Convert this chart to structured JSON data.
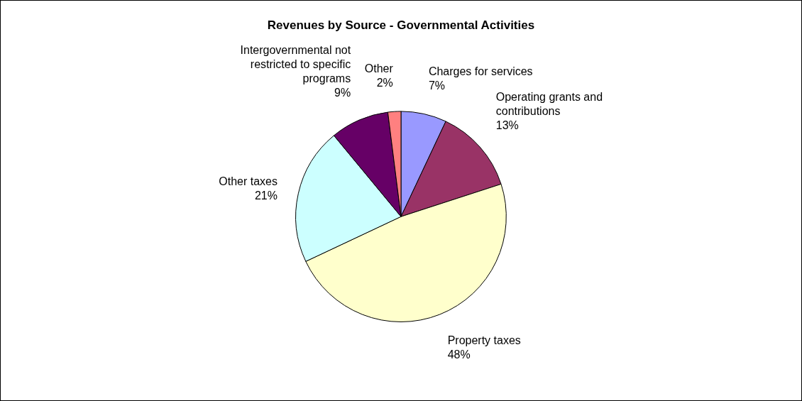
{
  "chart_data": {
    "type": "pie",
    "title": "Revenues by Source - Governmental Activities",
    "categories": [
      "Charges for services",
      "Operating grants and contributions",
      "Property taxes",
      "Other taxes",
      "Intergovernmental not restricted to specific programs",
      "Other"
    ],
    "values": [
      7,
      13,
      48,
      21,
      9,
      2
    ],
    "value_labels": [
      "7%",
      "13%",
      "48%",
      "21%",
      "9%",
      "2%"
    ],
    "colors": [
      "#9999ff",
      "#993366",
      "#ffffcc",
      "#ccffff",
      "#660066",
      "#ff8080"
    ],
    "legend": false
  }
}
